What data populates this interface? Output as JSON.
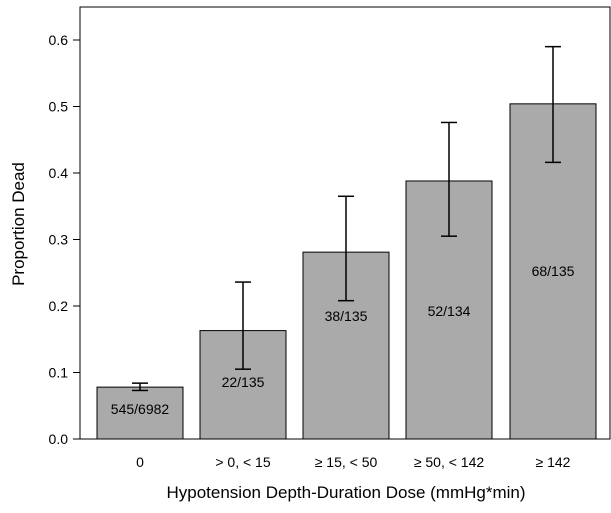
{
  "chart_data": {
    "type": "bar",
    "title": "",
    "xlabel": "Hypotension Depth-Duration Dose (mmHg*min)",
    "ylabel": "Proportion Dead",
    "ylim": [
      0,
      0.65
    ],
    "yticks": [
      "0.0",
      "0.1",
      "0.2",
      "0.3",
      "0.4",
      "0.5",
      "0.6"
    ],
    "grid": false,
    "legend": "none",
    "bar_color": "#aaaaaa",
    "categories": [
      "0",
      "> 0, < 15",
      "≥ 15, < 50",
      "≥ 50, < 142",
      "≥ 142"
    ],
    "values": [
      0.078,
      0.163,
      0.281,
      0.388,
      0.504
    ],
    "error_low": [
      0.073,
      0.105,
      0.208,
      0.305,
      0.416
    ],
    "error_high": [
      0.084,
      0.236,
      0.365,
      0.476,
      0.59
    ],
    "bar_labels": [
      "545/6982",
      "22/135",
      "38/135",
      "52/134",
      "68/135"
    ]
  }
}
